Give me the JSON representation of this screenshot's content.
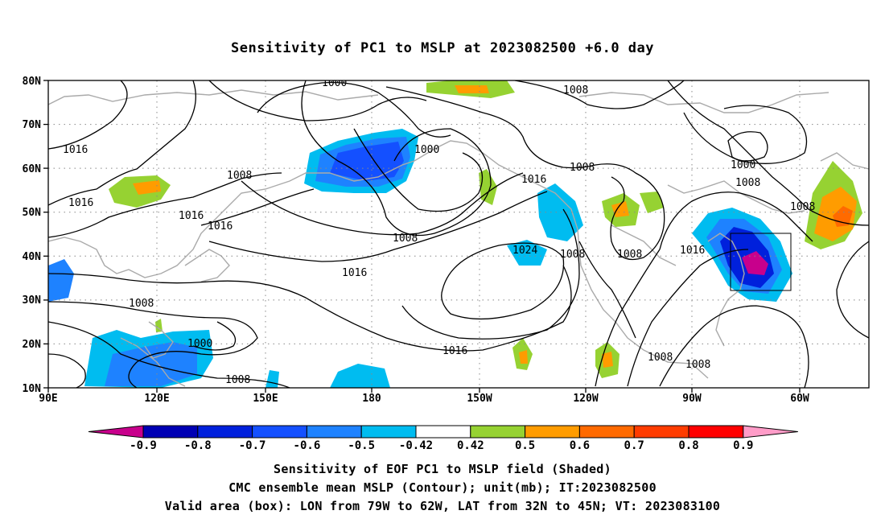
{
  "title": "Sensitivity of PC1 to MSLP at 2023082500 +6.0 day",
  "lat_labels": [
    "80N",
    "70N",
    "60N",
    "50N",
    "40N",
    "30N",
    "20N",
    "10N"
  ],
  "lon_labels": [
    "90E",
    "120E",
    "150E",
    "180",
    "150W",
    "120W",
    "90W",
    "60W"
  ],
  "contour_labels": [
    {
      "text": "1000"
    },
    {
      "text": "1008"
    },
    {
      "text": "1016"
    },
    {
      "text": "1000"
    },
    {
      "text": "1016"
    },
    {
      "text": "1008"
    },
    {
      "text": "1008"
    },
    {
      "text": "1016"
    },
    {
      "text": "1016"
    },
    {
      "text": "1016"
    },
    {
      "text": "1008"
    },
    {
      "text": "1016"
    },
    {
      "text": "1024"
    },
    {
      "text": "1008"
    },
    {
      "text": "1008"
    },
    {
      "text": "1016"
    },
    {
      "text": "1000"
    },
    {
      "text": "1008"
    },
    {
      "text": "1008"
    },
    {
      "text": "1016"
    },
    {
      "text": "1008"
    },
    {
      "text": "1000"
    },
    {
      "text": "1008"
    },
    {
      "text": "1008"
    }
  ],
  "colorbar": {
    "labels": [
      "-0.9",
      "-0.8",
      "-0.7",
      "-0.6",
      "-0.5",
      "-0.42",
      "0.42",
      "0.5",
      "0.6",
      "0.7",
      "0.8",
      "0.9"
    ],
    "colors": [
      "#c8008c",
      "#0000b4",
      "#0020dc",
      "#1450ff",
      "#1e82ff",
      "#00bcf0",
      "#ffffff",
      "#96d232",
      "#ff9c00",
      "#ff6a00",
      "#ff3c00",
      "#ff0000",
      "#ff9cc8"
    ]
  },
  "valid_box": {
    "lon_from": "79W",
    "lon_to": "62W",
    "lat_from": "32N",
    "lat_to": "45N"
  },
  "captions": {
    "line1": "Sensitivity of EOF PC1 to MSLP field (Shaded)",
    "line2": "CMC ensemble mean MSLP (Contour); unit(mb); IT:2023082500",
    "line3": "Valid area (box): LON from 79W to 62W, LAT from 32N to 45N; VT: 2023083100"
  }
}
